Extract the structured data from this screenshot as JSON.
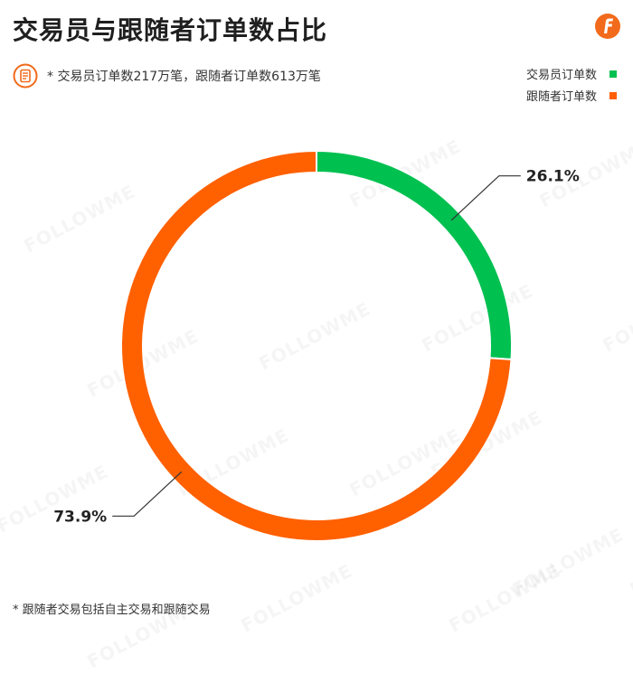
{
  "title": "交易员与跟随者订单数占比",
  "note": "* 交易员订单数217万笔，跟随者订单数613万笔",
  "footnote": "* 跟随者交易包括自主交易和跟随交易",
  "watermark": "FOLLOWME",
  "colors": {
    "trader": "#00c050",
    "follower": "#ff6000",
    "brand": "#f26a1b"
  },
  "icons": {
    "logo": "followme-logo-icon",
    "note": "document-icon"
  },
  "chart_data": {
    "type": "pie",
    "variant": "donut",
    "categories": [
      "交易员订单数",
      "跟随者订单数"
    ],
    "values": [
      26.1,
      73.9
    ],
    "labels": [
      "26.1%",
      "73.9%"
    ],
    "legend_position": "top-right"
  }
}
